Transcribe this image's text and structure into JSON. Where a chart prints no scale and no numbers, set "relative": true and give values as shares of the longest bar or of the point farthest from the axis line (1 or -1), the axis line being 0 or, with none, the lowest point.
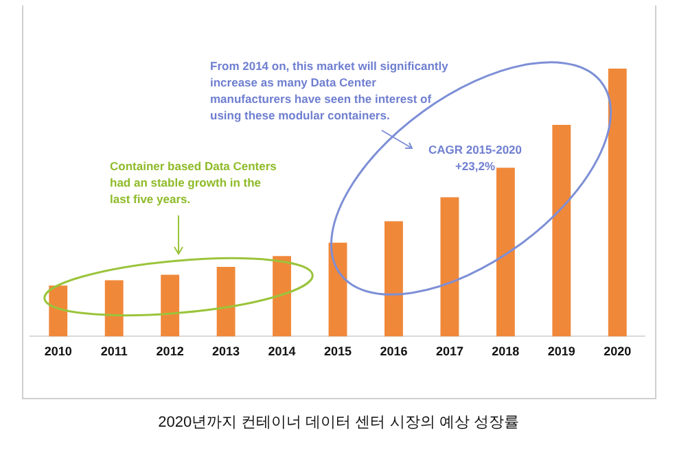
{
  "chart_data": {
    "type": "bar",
    "title": "2020년까지 컨테이너 데이터 센터 시장의 예상 성장률",
    "categories": [
      "2010",
      "2011",
      "2012",
      "2013",
      "2014",
      "2015",
      "2016",
      "2017",
      "2018",
      "2019",
      "2020"
    ],
    "values": [
      0.19,
      0.21,
      0.23,
      0.26,
      0.3,
      0.35,
      0.43,
      0.52,
      0.63,
      0.79,
      1
    ],
    "color": "#f0883a",
    "relative": true,
    "grid": false,
    "legend": false,
    "annotations": [
      "From 2014 on, this market will significantly increase as many Data Center manufacturers have seen the interest of using these modular containers.",
      "Container based Data Centers had an stable growth in the last five years.",
      "CAGR 2015-2020 +23,2%"
    ]
  }
}
